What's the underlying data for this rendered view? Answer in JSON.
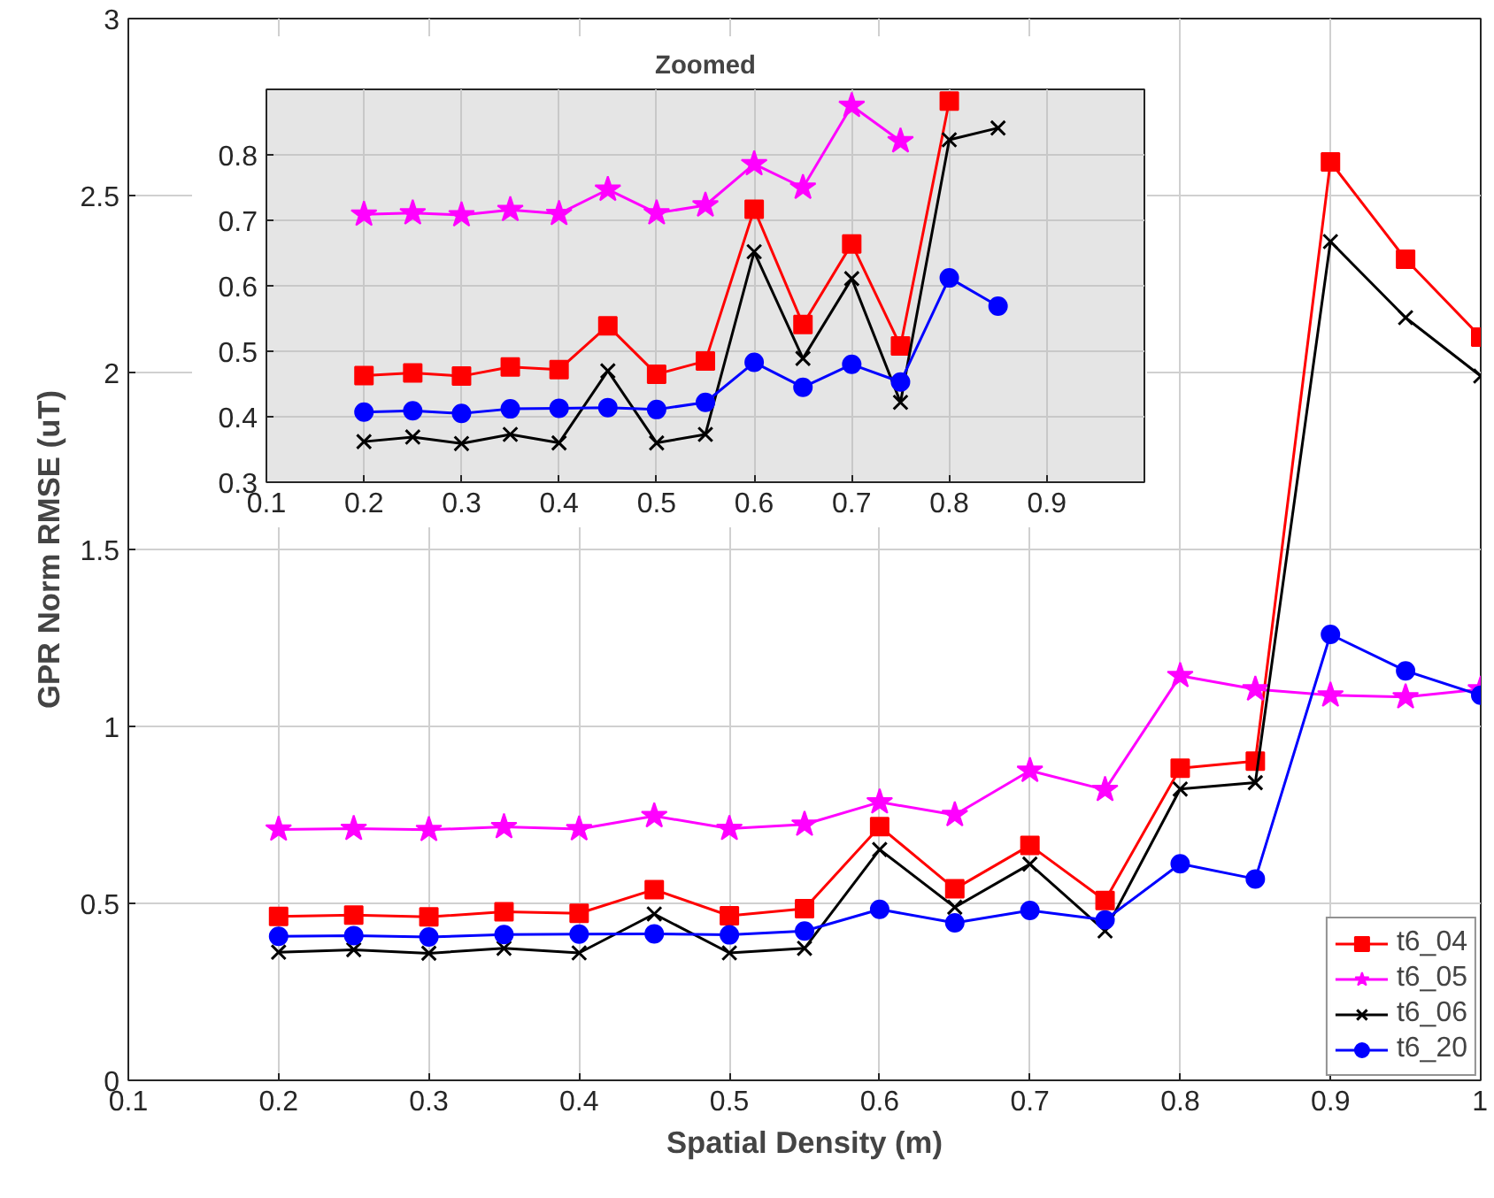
{
  "chart_data": [
    {
      "type": "line",
      "xlabel": "Spatial Density (m)",
      "ylabel": "GPR Norm RMSE (uT)",
      "x": [
        0.2,
        0.25,
        0.3,
        0.35,
        0.4,
        0.45,
        0.5,
        0.55,
        0.6,
        0.65,
        0.7,
        0.75,
        0.8,
        0.85,
        0.9,
        0.95,
        1.0
      ],
      "series": [
        {
          "name": "t6_04",
          "color": "#ff0000",
          "marker": "square",
          "values": [
            0.463,
            0.467,
            0.462,
            0.476,
            0.472,
            0.539,
            0.465,
            0.485,
            0.717,
            0.541,
            0.664,
            0.508,
            0.882,
            0.902,
            2.595,
            2.32,
            2.1
          ]
        },
        {
          "name": "t6_05",
          "color": "#ff00ff",
          "marker": "star",
          "values": [
            0.709,
            0.711,
            0.708,
            0.716,
            0.71,
            0.747,
            0.711,
            0.723,
            0.786,
            0.75,
            0.875,
            0.821,
            1.143,
            1.105,
            1.088,
            1.083,
            1.105
          ]
        },
        {
          "name": "t6_06",
          "color": "#000000",
          "marker": "cross",
          "values": [
            0.362,
            0.369,
            0.359,
            0.373,
            0.36,
            0.47,
            0.36,
            0.373,
            0.652,
            0.489,
            0.611,
            0.422,
            0.823,
            0.841,
            2.37,
            2.155,
            1.99
          ]
        },
        {
          "name": "t6_20",
          "color": "#0000ff",
          "marker": "circle",
          "values": [
            0.407,
            0.409,
            0.405,
            0.412,
            0.413,
            0.414,
            0.411,
            0.422,
            0.483,
            0.445,
            0.48,
            0.453,
            0.612,
            0.569,
            1.26,
            1.157,
            1.088
          ]
        }
      ],
      "xlim": [
        0.1,
        1.0
      ],
      "xticks": [
        0.1,
        0.2,
        0.3,
        0.4,
        0.5,
        0.6,
        0.7,
        0.8,
        0.9,
        1
      ],
      "ylim": [
        0,
        3
      ],
      "yticks": [
        0,
        0.5,
        1,
        1.5,
        2,
        2.5,
        3
      ],
      "grid": true,
      "legend": "bottom right",
      "line_style": "solid"
    },
    {
      "type": "line",
      "title": "Zoomed",
      "x": [
        0.2,
        0.25,
        0.3,
        0.35,
        0.4,
        0.45,
        0.5,
        0.55,
        0.6,
        0.65,
        0.7,
        0.75,
        0.8,
        0.85
      ],
      "series": [
        {
          "color": "#ff0000",
          "marker": "square",
          "values": [
            0.463,
            0.467,
            0.462,
            0.476,
            0.472,
            0.539,
            0.465,
            0.485,
            0.717,
            0.541,
            0.664,
            0.508,
            0.882,
            null
          ]
        },
        {
          "color": "#ff00ff",
          "marker": "star",
          "values": [
            0.709,
            0.711,
            0.708,
            0.716,
            0.71,
            0.747,
            0.711,
            0.723,
            0.786,
            0.75,
            0.875,
            0.821,
            null,
            null
          ]
        },
        {
          "color": "#000000",
          "marker": "cross",
          "values": [
            0.362,
            0.369,
            0.359,
            0.373,
            0.36,
            0.47,
            0.36,
            0.373,
            0.652,
            0.489,
            0.611,
            0.422,
            0.823,
            0.841
          ]
        },
        {
          "color": "#0000ff",
          "marker": "circle",
          "values": [
            0.407,
            0.409,
            0.405,
            0.412,
            0.413,
            0.414,
            0.411,
            0.422,
            0.483,
            0.445,
            0.48,
            0.453,
            0.612,
            0.569
          ]
        }
      ],
      "xlim": [
        0.1,
        1.0
      ],
      "xticks": [
        0.1,
        0.2,
        0.3,
        0.4,
        0.5,
        0.6,
        0.7,
        0.8,
        0.9
      ],
      "ylim": [
        0.3,
        0.9
      ],
      "yticks": [
        0.3,
        0.4,
        0.5,
        0.6,
        0.7,
        0.8
      ],
      "grid": true,
      "legend": false,
      "line_style": "solid"
    }
  ]
}
